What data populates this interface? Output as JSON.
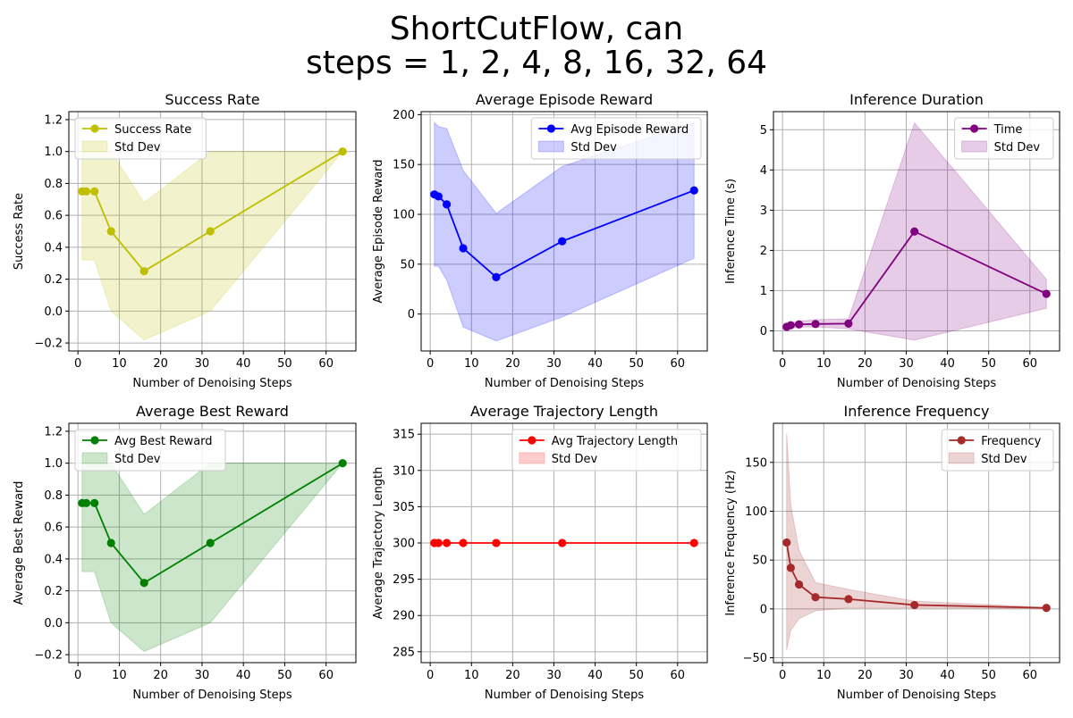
{
  "suptitle": {
    "line1": "ShortCutFlow, can",
    "line2": "steps = 1, 2, 4, 8, 16, 32, 64"
  },
  "chart_data": [
    {
      "type": "line",
      "title": "Success Rate",
      "xlabel": "Number of Denoising Steps",
      "ylabel": "Success Rate",
      "x": [
        1,
        2,
        4,
        8,
        16,
        32,
        64
      ],
      "series": [
        {
          "name": "Success Rate",
          "values": [
            0.75,
            0.75,
            0.75,
            0.5,
            0.25,
            0.5,
            1.0
          ],
          "color": "#bfbf00"
        }
      ],
      "band": {
        "name": "Std Dev",
        "lower": [
          0.32,
          0.32,
          0.32,
          0.0,
          -0.18,
          0.0,
          1.0
        ],
        "upper": [
          1.0,
          1.0,
          1.0,
          1.0,
          0.68,
          1.0,
          1.0
        ],
        "color": "#bfbf00"
      },
      "xlim": [
        -2.2,
        67.2
      ],
      "ylim": [
        -0.25,
        1.25
      ],
      "xticks": [
        0,
        10,
        20,
        30,
        40,
        50,
        60
      ],
      "yticks": [
        -0.2,
        0.0,
        0.2,
        0.4,
        0.6,
        0.8,
        1.0,
        1.2
      ],
      "ytick_labels": [
        "−0.2",
        "0.0",
        "0.2",
        "0.4",
        "0.6",
        "0.8",
        "1.0",
        "1.2"
      ],
      "grid": true,
      "legend": "top-left"
    },
    {
      "type": "line",
      "title": "Average Episode Reward",
      "xlabel": "Number of Denoising Steps",
      "ylabel": "Average Episode Reward",
      "x": [
        1,
        2,
        4,
        8,
        16,
        32,
        64
      ],
      "series": [
        {
          "name": "Avg Episode Reward",
          "values": [
            120,
            118,
            110,
            66,
            37,
            73,
            124
          ],
          "color": "#0000ff"
        }
      ],
      "band": {
        "name": "Std Dev",
        "lower": [
          48,
          48,
          34,
          -13,
          -27,
          -3,
          56
        ],
        "upper": [
          192,
          188,
          186,
          144,
          101,
          148,
          192
        ],
        "color": "#0000ff"
      },
      "xlim": [
        -2.2,
        67.2
      ],
      "ylim": [
        -37,
        203
      ],
      "xticks": [
        0,
        10,
        20,
        30,
        40,
        50,
        60
      ],
      "yticks": [
        0,
        50,
        100,
        150,
        200
      ],
      "ytick_labels": [
        "0",
        "50",
        "100",
        "150",
        "200"
      ],
      "grid": true,
      "legend": "top-right"
    },
    {
      "type": "line",
      "title": "Inference Duration",
      "xlabel": "Number of Denoising Steps",
      "ylabel": "Inference Time (s)",
      "x": [
        1,
        2,
        4,
        8,
        16,
        32,
        64
      ],
      "series": [
        {
          "name": "Time",
          "values": [
            0.1,
            0.14,
            0.16,
            0.17,
            0.18,
            2.47,
            0.92
          ],
          "color": "#800080"
        }
      ],
      "band": {
        "name": "Std Dev",
        "lower": [
          0.06,
          0.08,
          0.09,
          0.1,
          0.05,
          -0.23,
          0.56
        ],
        "upper": [
          0.14,
          0.2,
          0.24,
          0.28,
          0.3,
          5.17,
          1.28
        ],
        "color": "#800080"
      },
      "xlim": [
        -2.2,
        67.2
      ],
      "ylim": [
        -0.5,
        5.45
      ],
      "xticks": [
        0,
        10,
        20,
        30,
        40,
        50,
        60
      ],
      "yticks": [
        0,
        1,
        2,
        3,
        4,
        5
      ],
      "ytick_labels": [
        "0",
        "1",
        "2",
        "3",
        "4",
        "5"
      ],
      "grid": true,
      "legend": "top-right"
    },
    {
      "type": "line",
      "title": "Average Best Reward",
      "xlabel": "Number of Denoising Steps",
      "ylabel": "Average Best Reward",
      "x": [
        1,
        2,
        4,
        8,
        16,
        32,
        64
      ],
      "series": [
        {
          "name": "Avg Best Reward",
          "values": [
            0.75,
            0.75,
            0.75,
            0.5,
            0.25,
            0.5,
            1.0
          ],
          "color": "#008000"
        }
      ],
      "band": {
        "name": "Std Dev",
        "lower": [
          0.32,
          0.32,
          0.32,
          0.0,
          -0.18,
          0.0,
          1.0
        ],
        "upper": [
          1.0,
          1.0,
          1.0,
          1.0,
          0.68,
          1.0,
          1.0
        ],
        "color": "#008000"
      },
      "xlim": [
        -2.2,
        67.2
      ],
      "ylim": [
        -0.25,
        1.25
      ],
      "xticks": [
        0,
        10,
        20,
        30,
        40,
        50,
        60
      ],
      "yticks": [
        -0.2,
        0.0,
        0.2,
        0.4,
        0.6,
        0.8,
        1.0,
        1.2
      ],
      "ytick_labels": [
        "−0.2",
        "0.0",
        "0.2",
        "0.4",
        "0.6",
        "0.8",
        "1.0",
        "1.2"
      ],
      "grid": true,
      "legend": "top-left"
    },
    {
      "type": "line",
      "title": "Average Trajectory Length",
      "xlabel": "Number of Denoising Steps",
      "ylabel": "Average Trajectory Length",
      "x": [
        1,
        2,
        4,
        8,
        16,
        32,
        64
      ],
      "series": [
        {
          "name": "Avg Trajectory Length",
          "values": [
            300,
            300,
            300,
            300,
            300,
            300,
            300
          ],
          "color": "#ff0000"
        }
      ],
      "band": {
        "name": "Std Dev",
        "lower": [
          300,
          300,
          300,
          300,
          300,
          300,
          300
        ],
        "upper": [
          300,
          300,
          300,
          300,
          300,
          300,
          300
        ],
        "color": "#ff0000"
      },
      "xlim": [
        -2.2,
        67.2
      ],
      "ylim": [
        283.5,
        316.5
      ],
      "xticks": [
        0,
        10,
        20,
        30,
        40,
        50,
        60
      ],
      "yticks": [
        285,
        290,
        295,
        300,
        305,
        310,
        315
      ],
      "ytick_labels": [
        "285",
        "290",
        "295",
        "300",
        "305",
        "310",
        "315"
      ],
      "grid": true,
      "legend": "top-right"
    },
    {
      "type": "line",
      "title": "Inference Frequency",
      "xlabel": "Number of Denoising Steps",
      "ylabel": "Inference Frequency (Hz)",
      "x": [
        1,
        2,
        4,
        8,
        16,
        32,
        64
      ],
      "series": [
        {
          "name": "Frequency",
          "values": [
            68,
            42,
            25,
            12,
            10,
            4,
            1
          ],
          "color": "#a52a2a"
        }
      ],
      "band": {
        "name": "Std Dev",
        "lower": [
          -42,
          -22,
          -10,
          -2,
          1,
          1,
          0.5
        ],
        "upper": [
          180,
          106,
          60,
          27,
          20,
          8,
          1.5
        ],
        "color": "#a52a2a"
      },
      "xlim": [
        -2.2,
        67.2
      ],
      "ylim": [
        -55,
        190
      ],
      "xticks": [
        0,
        10,
        20,
        30,
        40,
        50,
        60
      ],
      "yticks": [
        -50,
        0,
        50,
        100,
        150
      ],
      "ytick_labels": [
        "−50",
        "0",
        "50",
        "100",
        "150"
      ],
      "grid": true,
      "legend": "top-right"
    }
  ]
}
